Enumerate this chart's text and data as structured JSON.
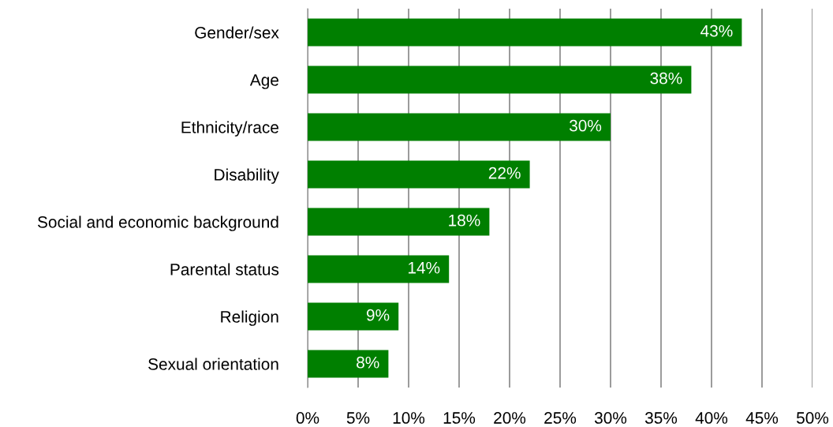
{
  "chart_data": {
    "type": "bar",
    "orientation": "horizontal",
    "categories": [
      "Gender/sex",
      "Age",
      "Ethnicity/race",
      "Disability",
      "Social and economic background",
      "Parental status",
      "Religion",
      "Sexual orientation"
    ],
    "values": [
      43,
      38,
      30,
      22,
      18,
      14,
      9,
      8
    ],
    "value_labels": [
      "43%",
      "38%",
      "30%",
      "22%",
      "18%",
      "14%",
      "9%",
      "8%"
    ],
    "color": "#007f00",
    "xlim": [
      0,
      50
    ],
    "xticks": [
      {
        "value": 0,
        "label": "0%"
      },
      {
        "value": 5,
        "label": "5%"
      },
      {
        "value": 10,
        "label": "10%"
      },
      {
        "value": 15,
        "label": "15%"
      },
      {
        "value": 20,
        "label": "20%"
      },
      {
        "value": 25,
        "label": "25%"
      },
      {
        "value": 30,
        "label": "30%"
      },
      {
        "value": 35,
        "label": "35%"
      },
      {
        "value": 40,
        "label": "40%"
      },
      {
        "value": 45,
        "label": "45%"
      },
      {
        "value": 50,
        "label": "50%"
      }
    ],
    "grid": "x",
    "legend": false
  }
}
